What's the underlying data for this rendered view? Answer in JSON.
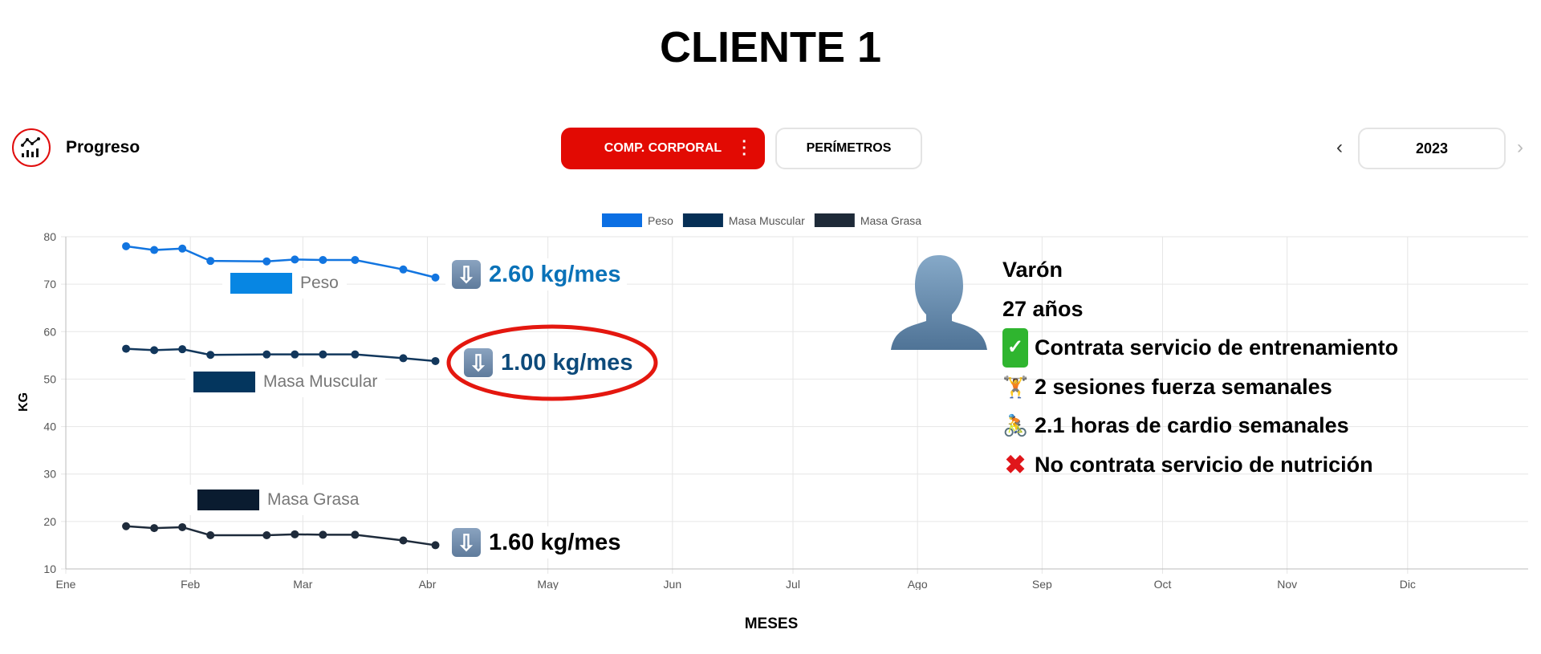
{
  "page_title": "CLIENTE 1",
  "header": {
    "section_label": "Progreso",
    "section_icon": "chart-progress-icon"
  },
  "tabs": [
    {
      "label": "COMP. CORPORAL",
      "active": true,
      "menu_icon": "kebab-menu-icon"
    },
    {
      "label": "PERÍMETROS",
      "active": false
    }
  ],
  "year_selector": {
    "value": "2023",
    "prev_icon": "chevron-left-icon",
    "next_icon": "chevron-right-icon"
  },
  "colors": {
    "accent": "#e20a03",
    "peso": "#0b6fe3",
    "masa_muscular": "#062f55",
    "masa_grasa": "#1e2a38"
  },
  "chart_data": {
    "type": "line",
    "xlabel": "MESES",
    "ylabel": "KG",
    "x_tick_labels": [
      "Ene",
      "Feb",
      "Mar",
      "Abr",
      "May",
      "Jun",
      "Jul",
      "Ago",
      "Sep",
      "Oct",
      "Nov",
      "Dic"
    ],
    "y_ticks": [
      10,
      20,
      30,
      40,
      50,
      60,
      70,
      80
    ],
    "ylim": [
      10,
      80
    ],
    "xlim": [
      "2023-01-01",
      "2023-12-31"
    ],
    "grid": true,
    "legend_position": "top",
    "x": [
      "2023-01-16",
      "2023-01-23",
      "2023-01-30",
      "2023-02-06",
      "2023-02-20",
      "2023-02-27",
      "2023-03-06",
      "2023-03-14",
      "2023-03-26",
      "2023-04-03"
    ],
    "series": [
      {
        "name": "Peso",
        "color": "#1275e0",
        "values": [
          78.0,
          77.2,
          77.5,
          74.9,
          74.8,
          75.2,
          75.1,
          75.1,
          73.1,
          71.4
        ]
      },
      {
        "name": "Masa Muscular",
        "color": "#12375c",
        "values": [
          56.4,
          56.1,
          56.3,
          55.1,
          55.2,
          55.2,
          55.2,
          55.2,
          54.4,
          53.8
        ]
      },
      {
        "name": "Masa Grasa",
        "color": "#1e2b3b",
        "values": [
          19.0,
          18.6,
          18.8,
          17.1,
          17.1,
          17.3,
          17.2,
          17.2,
          16.0,
          15.0
        ]
      }
    ],
    "annotations": [
      {
        "text": "2.60 kg/mes",
        "series": "Peso",
        "icon": "down-arrow-icon",
        "color": "#0a72b8"
      },
      {
        "text": "1.00 kg/mes",
        "series": "Masa Muscular",
        "icon": "down-arrow-icon",
        "color": "#0d4a7a",
        "circled": true
      },
      {
        "text": "1.60 kg/mes",
        "series": "Masa Grasa",
        "icon": "down-arrow-icon",
        "color": "#000000"
      }
    ],
    "inline_labels": [
      "Peso",
      "Masa Muscular",
      "Masa Grasa"
    ]
  },
  "client_info": {
    "avatar_icon": "person-silhouette-icon",
    "gender": "Varón",
    "age": "27 años",
    "items": [
      {
        "icon": "check-mark-icon",
        "text": "Contrata servicio de entrenamiento"
      },
      {
        "icon": "weightlifter-icon",
        "text": "2 sesiones fuerza semanales"
      },
      {
        "icon": "cyclist-icon",
        "text": "2.1 horas de cardio semanales"
      },
      {
        "icon": "cross-mark-icon",
        "text": "No contrata servicio de nutrición"
      }
    ]
  }
}
